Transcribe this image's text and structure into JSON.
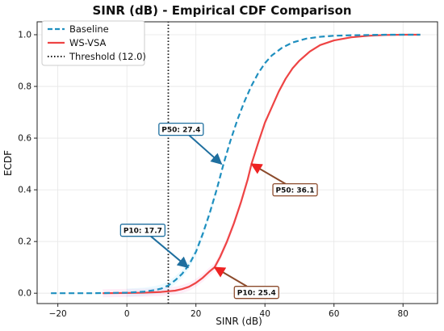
{
  "chart_data": {
    "type": "line",
    "title": "SINR (dB) - Empirical CDF Comparison",
    "xlabel": "SINR (dB)",
    "ylabel": "ECDF",
    "xlim": [
      -26,
      90
    ],
    "ylim": [
      -0.04,
      1.05
    ],
    "xticks": [
      -20,
      0,
      20,
      40,
      60,
      80
    ],
    "yticks": [
      0.0,
      0.2,
      0.4,
      0.6,
      0.8,
      1.0
    ],
    "grid": true,
    "legend_position": "top-left",
    "series": [
      {
        "name": "Baseline",
        "style": "dashed",
        "color": "#1f8fbf",
        "x": [
          -22,
          -10,
          -5,
          0,
          5,
          8,
          10,
          12,
          14,
          16,
          18,
          20,
          22,
          24,
          26,
          28,
          30,
          32,
          34,
          36,
          38,
          40,
          42,
          45,
          48,
          52,
          56,
          60,
          65,
          70,
          75,
          80,
          85
        ],
        "y": [
          0.0,
          0.0,
          0.001,
          0.002,
          0.006,
          0.012,
          0.018,
          0.03,
          0.05,
          0.075,
          0.11,
          0.16,
          0.23,
          0.31,
          0.4,
          0.5,
          0.59,
          0.67,
          0.74,
          0.8,
          0.85,
          0.89,
          0.92,
          0.95,
          0.97,
          0.985,
          0.992,
          0.996,
          0.998,
          0.999,
          1.0,
          1.0,
          1.0
        ]
      },
      {
        "name": "WS-VSA",
        "style": "solid",
        "color": "#ee4444",
        "x": [
          -7,
          0,
          5,
          10,
          14,
          16,
          18,
          20,
          22,
          24,
          25.4,
          27,
          29,
          31,
          33,
          35,
          36.1,
          38,
          40,
          42,
          44,
          46,
          48,
          50,
          53,
          56,
          60,
          65,
          70,
          75,
          80,
          85
        ],
        "y": [
          0.0,
          0.001,
          0.002,
          0.005,
          0.01,
          0.016,
          0.025,
          0.04,
          0.06,
          0.085,
          0.1,
          0.14,
          0.2,
          0.27,
          0.35,
          0.44,
          0.5,
          0.58,
          0.66,
          0.72,
          0.78,
          0.83,
          0.87,
          0.9,
          0.935,
          0.96,
          0.978,
          0.99,
          0.996,
          0.999,
          1.0,
          1.0
        ]
      },
      {
        "name": "Threshold (12.0)",
        "style": "dotted",
        "color": "#111111",
        "x": [
          12.0,
          12.0
        ],
        "y": [
          -0.04,
          1.05
        ]
      }
    ],
    "annotations": [
      {
        "text": "P50: 27.4",
        "series": "Baseline",
        "x": 27.4,
        "y": 0.5,
        "border": "#1f6f9f"
      },
      {
        "text": "P10: 17.7",
        "series": "Baseline",
        "x": 17.7,
        "y": 0.1,
        "border": "#1f6f9f"
      },
      {
        "text": "P50: 36.1",
        "series": "WS-VSA",
        "x": 36.1,
        "y": 0.5,
        "border": "#8b4a2b"
      },
      {
        "text": "P10: 25.4",
        "series": "WS-VSA",
        "x": 25.4,
        "y": 0.1,
        "border": "#8b4a2b"
      }
    ]
  }
}
